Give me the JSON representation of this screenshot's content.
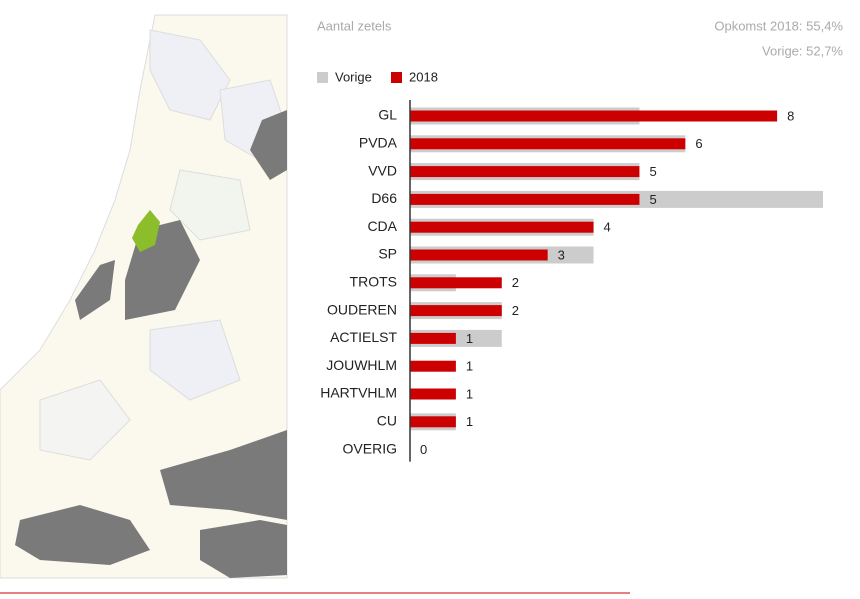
{
  "chart_data": {
    "type": "bar",
    "orientation": "horizontal",
    "subtitle": "Aantal zetels",
    "annotations": [
      "Opkomst 2018: 55,4%",
      "Vorige: 52,7%"
    ],
    "categories": [
      "GL",
      "PVDA",
      "VVD",
      "D66",
      "CDA",
      "SP",
      "TROTS",
      "OUDEREN",
      "ACTIELST",
      "JOUWHLM",
      "HARTVHLM",
      "CU",
      "OVERIG"
    ],
    "series": [
      {
        "name": "Vorige",
        "color": "#cccccc",
        "values": [
          5,
          6,
          5,
          9,
          4,
          4,
          1,
          2,
          2,
          0,
          0,
          1,
          0
        ]
      },
      {
        "name": "2018",
        "color": "#cc0000",
        "values": [
          8,
          6,
          5,
          5,
          4,
          3,
          2,
          2,
          1,
          1,
          1,
          1,
          0
        ]
      }
    ],
    "xlim": [
      0,
      9
    ]
  }
}
